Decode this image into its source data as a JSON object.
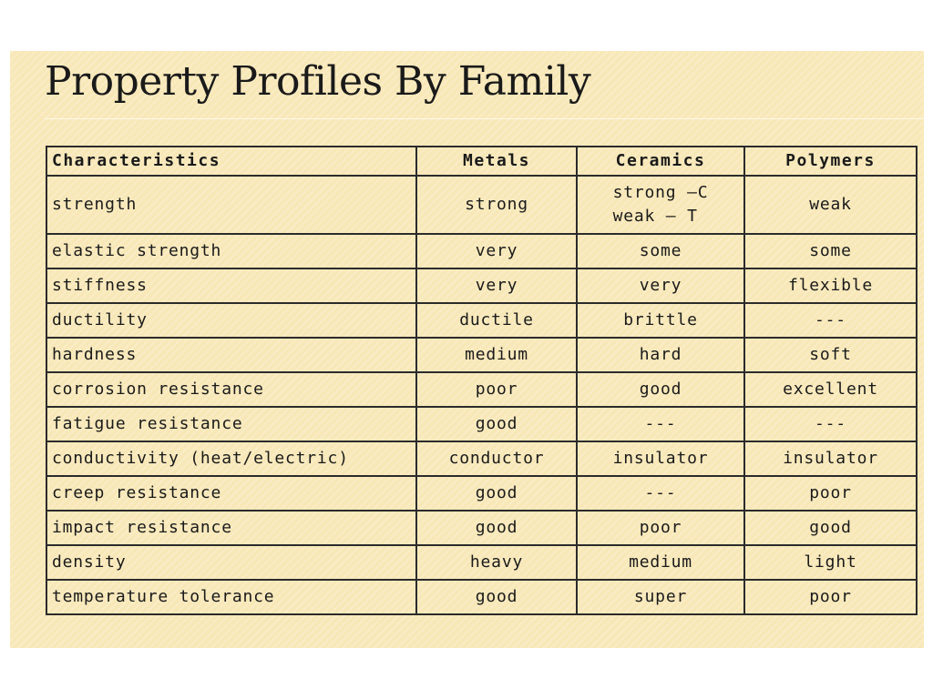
{
  "slide": {
    "title": "Property Profiles By Family"
  },
  "table": {
    "headers": [
      "Characteristics",
      "Metals",
      "Ceramics",
      "Polymers"
    ],
    "rows": [
      {
        "property": "strength",
        "metals": "strong",
        "ceramics": [
          "strong –C",
          "weak – T"
        ],
        "polymers": "weak"
      },
      {
        "property": "elastic strength",
        "metals": "very",
        "ceramics": "some",
        "polymers": "some"
      },
      {
        "property": "stiffness",
        "metals": "very",
        "ceramics": "very",
        "polymers": "flexible"
      },
      {
        "property": "ductility",
        "metals": "ductile",
        "ceramics": "brittle",
        "polymers": "---"
      },
      {
        "property": "hardness",
        "metals": "medium",
        "ceramics": "hard",
        "polymers": "soft"
      },
      {
        "property": "corrosion resistance",
        "metals": "poor",
        "ceramics": "good",
        "polymers": "excellent"
      },
      {
        "property": "fatigue resistance",
        "metals": "good",
        "ceramics": "---",
        "polymers": "---"
      },
      {
        "property": "conductivity (heat/electric)",
        "metals": "conductor",
        "ceramics": "insulator",
        "polymers": "insulator"
      },
      {
        "property": "creep resistance",
        "metals": "good",
        "ceramics": "---",
        "polymers": "poor"
      },
      {
        "property": "impact resistance",
        "metals": "good",
        "ceramics": "poor",
        "polymers": "good"
      },
      {
        "property": "density",
        "metals": "heavy",
        "ceramics": "medium",
        "polymers": "light"
      },
      {
        "property": "temperature tolerance",
        "metals": "good",
        "ceramics": "super",
        "polymers": "poor"
      }
    ]
  },
  "colors": {
    "slide_background": "#f8e8b8",
    "text": "#1a1a1a",
    "grid_lines": "#2b2b2b"
  }
}
